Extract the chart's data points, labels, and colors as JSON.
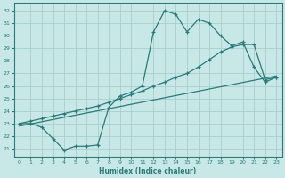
{
  "xlabel": "Humidex (Indice chaleur)",
  "bg_color": "#c8e8e8",
  "grid_color": "#a8cece",
  "line_color": "#2a7a7a",
  "x_ticks": [
    0,
    1,
    2,
    3,
    4,
    5,
    6,
    7,
    8,
    9,
    10,
    11,
    12,
    13,
    14,
    15,
    16,
    17,
    18,
    19,
    20,
    21,
    22,
    23
  ],
  "y_ticks": [
    21,
    22,
    23,
    24,
    25,
    26,
    27,
    28,
    29,
    30,
    31,
    32
  ],
  "xlim": [
    -0.5,
    23.5
  ],
  "ylim": [
    20.4,
    32.6
  ],
  "line1_x": [
    0,
    1,
    2,
    3,
    4,
    5,
    6,
    7,
    8,
    9,
    10,
    11,
    12,
    13,
    14,
    15,
    16,
    17,
    18,
    19,
    20,
    21,
    22,
    23
  ],
  "line1_y": [
    23.0,
    23.0,
    22.7,
    21.8,
    20.9,
    21.2,
    21.2,
    21.3,
    24.3,
    25.2,
    25.5,
    26.0,
    30.3,
    32.0,
    31.7,
    30.3,
    31.3,
    31.0,
    30.0,
    29.2,
    29.5,
    27.5,
    26.3,
    26.7
  ],
  "line2_x": [
    0,
    1,
    2,
    3,
    4,
    5,
    6,
    7,
    8,
    9,
    10,
    11,
    12,
    13,
    14,
    15,
    16,
    17,
    18,
    19,
    20,
    21,
    22,
    23
  ],
  "line2_y": [
    23.0,
    23.2,
    23.4,
    23.6,
    23.8,
    24.0,
    24.2,
    24.4,
    24.7,
    25.0,
    25.3,
    25.6,
    26.0,
    26.3,
    26.7,
    27.0,
    27.5,
    28.1,
    28.7,
    29.1,
    29.3,
    29.3,
    26.5,
    26.7
  ],
  "line3_x": [
    0,
    23
  ],
  "line3_y": [
    22.8,
    26.8
  ]
}
